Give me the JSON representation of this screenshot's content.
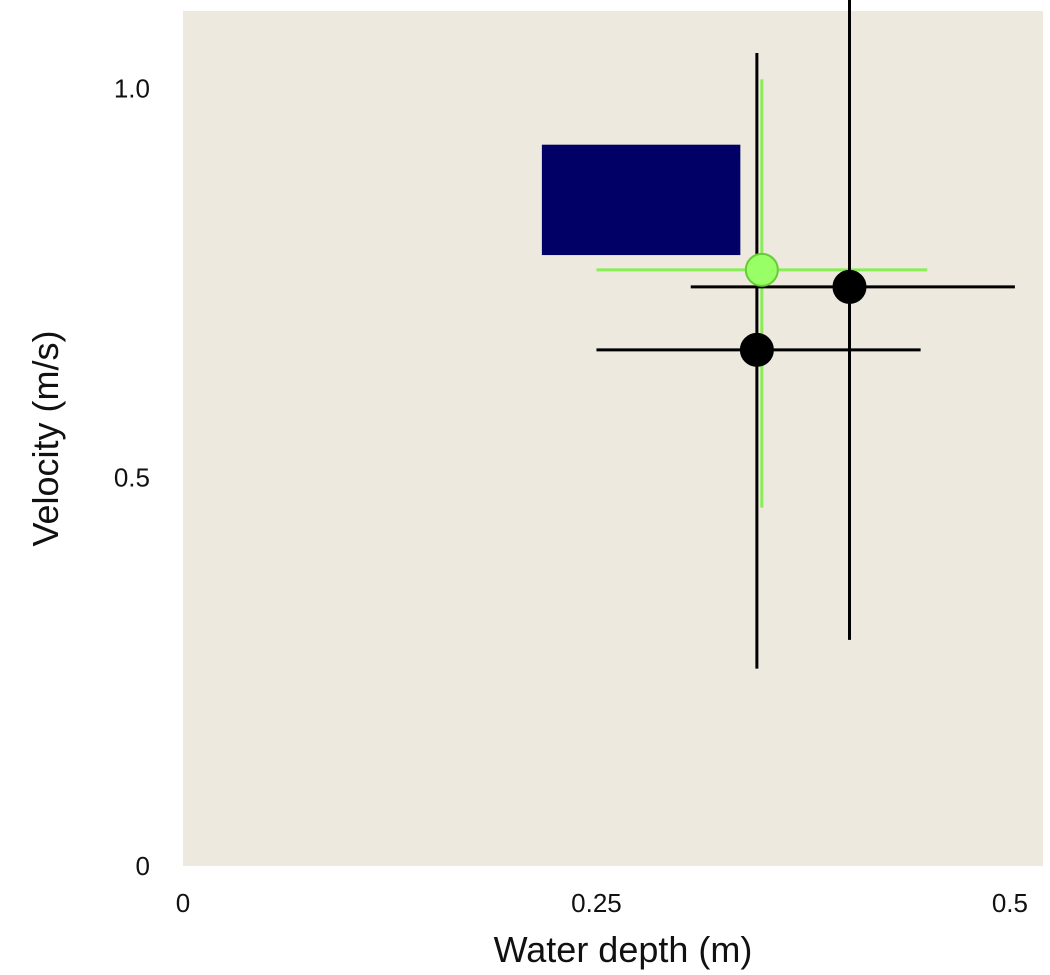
{
  "chart_data": {
    "type": "scatter",
    "xlabel": "Water depth (m)",
    "ylabel": "Velocity (m/s)",
    "xlim": [
      0,
      0.52
    ],
    "ylim": [
      0,
      1.1
    ],
    "xticks": [
      {
        "value": 0,
        "label": "0"
      },
      {
        "value": 0.25,
        "label": "0.25"
      },
      {
        "value": 0.5,
        "label": "0.5"
      }
    ],
    "yticks": [
      {
        "value": 0,
        "label": "0"
      },
      {
        "value": 0.5,
        "label": "0.5"
      },
      {
        "value": 1.0,
        "label": "1.0"
      }
    ],
    "grid": false,
    "plot_background": "#ede9de",
    "region": {
      "x0": 0.217,
      "x1": 0.337,
      "y0": 0.786,
      "y1": 0.928,
      "color": "#000066"
    },
    "points": [
      {
        "x": 0.35,
        "y": 0.767,
        "xerr": [
          0.25,
          0.45
        ],
        "yerr": [
          0.461,
          1.012
        ],
        "color": "#99ff66",
        "error_color": "#88ee55"
      },
      {
        "x": 0.347,
        "y": 0.664,
        "xerr": [
          0.25,
          0.446
        ],
        "yerr": [
          0.254,
          1.046
        ],
        "color": "#000000",
        "error_color": "#000000"
      },
      {
        "x": 0.403,
        "y": 0.745,
        "xerr": [
          0.307,
          0.503
        ],
        "yerr": [
          0.291,
          1.26
        ],
        "color": "#000000",
        "error_color": "#000000"
      }
    ]
  }
}
